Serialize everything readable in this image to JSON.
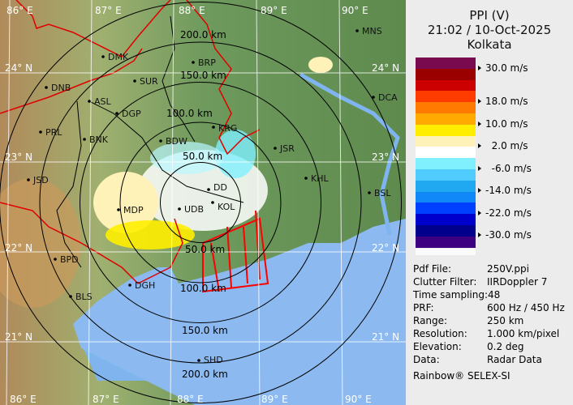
{
  "header": {
    "product": "PPI (V)",
    "datetime": "21:02 / 10-Oct-2025",
    "site": "Kolkata"
  },
  "legend": {
    "unit": "m/s",
    "colors": [
      "#7a0a50",
      "#9a0000",
      "#cc0000",
      "#ff3c00",
      "#ff7a00",
      "#ffaa00",
      "#ffee00",
      "#fff2b8",
      "#ffffff",
      "#80f0ff",
      "#50ccff",
      "#20a8f0",
      "#1088f8",
      "#0040ff",
      "#0000cc",
      "#00008c",
      "#3c0080"
    ],
    "ticks": [
      "30.0 m/s",
      "18.0 m/s",
      "10.0 m/s",
      "  2.0 m/s",
      "  -6.0 m/s",
      "-14.0 m/s",
      "-22.0 m/s",
      "-30.0 m/s"
    ]
  },
  "info": [
    {
      "key": "Pdf File:",
      "value": "250V.ppi"
    },
    {
      "key": "Clutter Filter:",
      "value": "IIRDoppler 7"
    },
    {
      "key": "Time sampling:",
      "value": "48"
    },
    {
      "key": "PRF:",
      "value": "600 Hz / 450 Hz"
    },
    {
      "key": "Range:",
      "value": "250 km"
    },
    {
      "key": "Resolution:",
      "value": "1.000 km/pixel"
    },
    {
      "key": "Elevation:",
      "value": "0.2 deg"
    },
    {
      "key": "Data:",
      "value": "Radar Data"
    }
  ],
  "credit": "Rainbow® SELEX-SI",
  "map": {
    "longitude_labels": [
      "86° E",
      "87° E",
      "88° E",
      "89° E",
      "90° E"
    ],
    "latitude_labels": [
      "24° N",
      "23° N",
      "22° N",
      "21° N"
    ],
    "ring_labels": [
      "50.0 km",
      "100.0 km",
      "150.0 km",
      "200.0 km"
    ],
    "cities": [
      "MNS",
      "DMK",
      "BRP",
      "DNB",
      "SUR",
      "ASL",
      "DGP",
      "DCA",
      "KRG",
      "BDW",
      "PRL",
      "BNK",
      "JSR",
      "KHL",
      "JSD",
      "BSL",
      "MDP",
      "DD",
      "KOL",
      "UDB",
      "BPD",
      "BLS",
      "DGH",
      "SHD"
    ]
  }
}
